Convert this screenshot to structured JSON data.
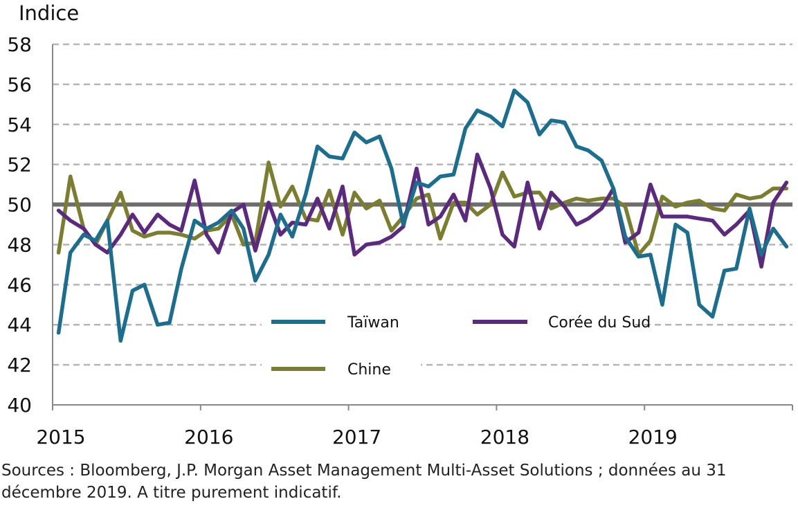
{
  "chart_data": {
    "type": "line",
    "title": "",
    "ylabel": "Indice",
    "xlabel": "",
    "ylim": [
      40,
      58
    ],
    "yticks": [
      40,
      42,
      44,
      46,
      48,
      50,
      52,
      54,
      56,
      58
    ],
    "xlim": [
      2015,
      2020
    ],
    "xticks": [
      "2015",
      "2016",
      "2017",
      "2018",
      "2019"
    ],
    "grid": "horizontal dashed",
    "reference_line": 50,
    "legend_placement": "lower center (inside plot)",
    "x": [
      2015.04,
      2015.12,
      2015.21,
      2015.29,
      2015.37,
      2015.46,
      2015.54,
      2015.62,
      2015.71,
      2015.79,
      2015.87,
      2015.96,
      2016.04,
      2016.12,
      2016.21,
      2016.29,
      2016.37,
      2016.46,
      2016.54,
      2016.62,
      2016.71,
      2016.79,
      2016.87,
      2016.96,
      2017.04,
      2017.12,
      2017.21,
      2017.29,
      2017.37,
      2017.46,
      2017.54,
      2017.62,
      2017.71,
      2017.79,
      2017.87,
      2017.96,
      2018.04,
      2018.12,
      2018.21,
      2018.29,
      2018.37,
      2018.46,
      2018.54,
      2018.62,
      2018.71,
      2018.79,
      2018.87,
      2018.96,
      2019.04,
      2019.12,
      2019.21,
      2019.29,
      2019.37,
      2019.46,
      2019.54,
      2019.62,
      2019.71,
      2019.79,
      2019.87,
      2019.96
    ],
    "series": [
      {
        "name": "Taïwan",
        "color": "#1c6e8f",
        "values": [
          43.6,
          47.6,
          48.5,
          48.2,
          49.2,
          43.2,
          45.7,
          46.0,
          44.0,
          44.1,
          46.8,
          49.2,
          48.8,
          49.1,
          49.7,
          48.8,
          46.2,
          47.5,
          49.5,
          48.4,
          50.5,
          52.9,
          52.4,
          52.3,
          53.6,
          53.1,
          53.4,
          51.8,
          49.0,
          51.1,
          50.9,
          51.4,
          51.5,
          53.8,
          54.7,
          54.4,
          53.9,
          55.7,
          55.1,
          53.5,
          54.2,
          54.1,
          52.9,
          52.7,
          52.2,
          50.8,
          48.4,
          47.4,
          47.5,
          45.0,
          49.0,
          48.6,
          45.0,
          44.4,
          46.7,
          46.8,
          49.8,
          47.5,
          48.8,
          47.9
        ]
      },
      {
        "name": "Corée du Sud",
        "color": "#5b2a7e",
        "values": [
          49.7,
          49.2,
          48.8,
          48.0,
          47.6,
          48.5,
          49.5,
          48.6,
          49.5,
          49.0,
          48.7,
          51.2,
          48.5,
          47.6,
          49.6,
          50.0,
          47.7,
          50.1,
          48.5,
          49.1,
          49.0,
          50.3,
          48.8,
          50.9,
          47.5,
          48.0,
          48.1,
          48.4,
          48.9,
          51.8,
          49.0,
          49.4,
          50.5,
          49.2,
          52.5,
          50.8,
          48.5,
          47.9,
          51.1,
          48.8,
          50.6,
          49.9,
          49.0,
          49.3,
          49.8,
          50.8,
          48.1,
          48.6,
          51.0,
          49.4,
          49.4,
          49.4,
          49.3,
          49.2,
          48.5,
          49.0,
          49.7,
          46.9,
          50.1,
          51.1
        ]
      },
      {
        "name": "Chine",
        "color": "#7b7d2f",
        "values": [
          47.6,
          51.4,
          48.8,
          48.0,
          49.2,
          50.6,
          48.7,
          48.4,
          48.6,
          48.6,
          48.5,
          48.3,
          48.7,
          48.8,
          49.5,
          48.0,
          48.1,
          52.1,
          49.9,
          50.9,
          49.3,
          49.2,
          50.7,
          48.5,
          50.6,
          49.8,
          50.2,
          48.7,
          49.4,
          50.3,
          50.5,
          48.3,
          50.1,
          50.1,
          49.5,
          50.0,
          51.6,
          50.4,
          50.6,
          50.6,
          49.8,
          50.1,
          50.3,
          50.2,
          50.3,
          50.3,
          49.9,
          47.5,
          48.2,
          50.4,
          49.9,
          50.1,
          50.2,
          49.8,
          49.7,
          50.5,
          50.3,
          50.4,
          50.8,
          50.8
        ]
      }
    ],
    "legend": [
      "Taïwan",
      "Corée du Sud",
      "Chine"
    ]
  },
  "source_note": "Sources : Bloomberg, J.P. Morgan Asset Management Multi-Asset Solutions ; données au 31 décembre 2019. A titre purement indicatif."
}
